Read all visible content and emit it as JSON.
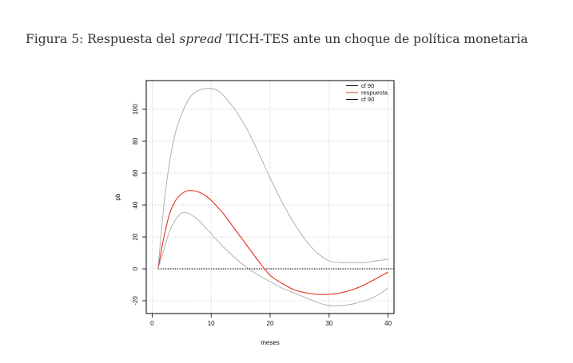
{
  "caption": {
    "prefix": "Figura 5: Respuesta del ",
    "italic": "spread",
    "suffix": " TICH-TES ante un choque de política monetaria"
  },
  "chart_data": {
    "type": "line",
    "xlabel": "meses",
    "ylabel": "pb",
    "xlim": [
      -1,
      41
    ],
    "ylim": [
      -28,
      118
    ],
    "x_ticks": [
      0,
      10,
      20,
      30,
      40
    ],
    "y_ticks": [
      -20,
      0,
      20,
      40,
      60,
      80,
      100
    ],
    "grid": true,
    "legend_position": "top-right",
    "reference_line": {
      "y": 0,
      "style": "dotted",
      "color": "#000000"
    },
    "x": [
      1,
      2,
      3,
      4,
      5,
      6,
      7,
      8,
      9,
      10,
      11,
      12,
      14,
      16,
      18,
      20,
      22,
      24,
      26,
      28,
      30,
      32,
      34,
      36,
      38,
      40
    ],
    "series": [
      {
        "name": "cf 90",
        "color": "#aaaaaa",
        "values": [
          0,
          40,
          68,
          86,
          97,
          105,
          110,
          112,
          113,
          113,
          112,
          109,
          100,
          88,
          73,
          57,
          42,
          29,
          18,
          10,
          5,
          4,
          4,
          4,
          5,
          6
        ]
      },
      {
        "name": "respuesta",
        "color": "#e03020",
        "values": [
          0,
          20,
          35,
          43,
          47,
          49,
          49,
          48,
          46,
          43,
          39,
          35,
          25,
          15,
          5,
          -4,
          -9,
          -13,
          -15,
          -16,
          -16,
          -15,
          -13,
          -10,
          -6,
          -2
        ]
      },
      {
        "name": "cf 90",
        "color": "#aaaaaa",
        "values": [
          0,
          12,
          24,
          31,
          35,
          35,
          33,
          30,
          26,
          22,
          18,
          14,
          7,
          1,
          -4,
          -8,
          -12,
          -15,
          -18,
          -21,
          -23,
          -23,
          -22,
          -20,
          -17,
          -12
        ]
      }
    ],
    "legend": [
      {
        "label": "cf 90",
        "color": "#000000"
      },
      {
        "label": "respuesta",
        "color": "#e03020"
      },
      {
        "label": "cf 90",
        "color": "#000000"
      }
    ]
  }
}
